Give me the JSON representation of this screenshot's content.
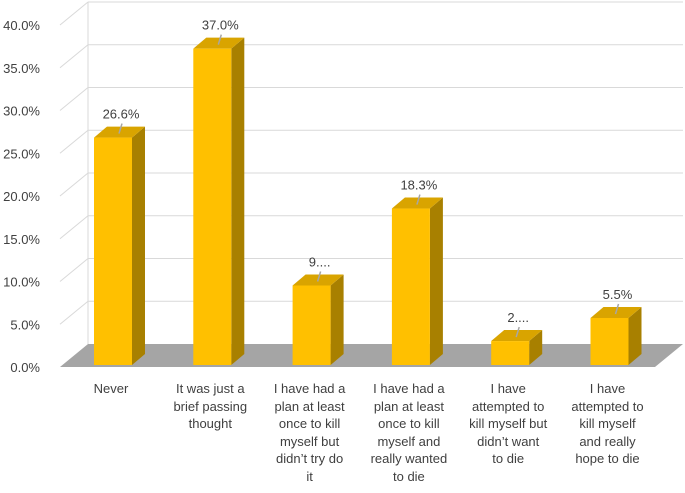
{
  "chart_data": {
    "type": "bar",
    "style": "3d-column",
    "categories": [
      [
        "Never"
      ],
      [
        "It was just a",
        "brief passing",
        "thought"
      ],
      [
        "I have had a",
        "plan at least",
        "once to kill",
        "myself but",
        "didn’t try do",
        "it"
      ],
      [
        "I have had a",
        "plan at least",
        "once to kill",
        "myself and",
        "really wanted",
        "to die"
      ],
      [
        "I have",
        "attempted to",
        "kill myself but",
        "didn’t want",
        "to die"
      ],
      [
        "I have",
        "attempted to",
        "kill myself",
        "and really",
        "hope  to die"
      ]
    ],
    "values": [
      26.6,
      37.0,
      9.3,
      18.3,
      2.8,
      5.5
    ],
    "data_labels": [
      "26.6%",
      "37.0%",
      "9....",
      "18.3%",
      "2....",
      "5.5%"
    ],
    "y_ticks": [
      "0.0%",
      "5.0%",
      "10.0%",
      "15.0%",
      "20.0%",
      "25.0%",
      "30.0%",
      "35.0%",
      "40.0%"
    ],
    "ylim": [
      0,
      40
    ],
    "grid": true,
    "legend": "none",
    "colors": {
      "bar_front": "#FFC000",
      "bar_side": "#A88000",
      "bar_top": "#D9A400",
      "floor": "#A5A5A5",
      "grid": "#D9D9D9",
      "text": "#404040",
      "leader": "#A6A6A6"
    }
  }
}
